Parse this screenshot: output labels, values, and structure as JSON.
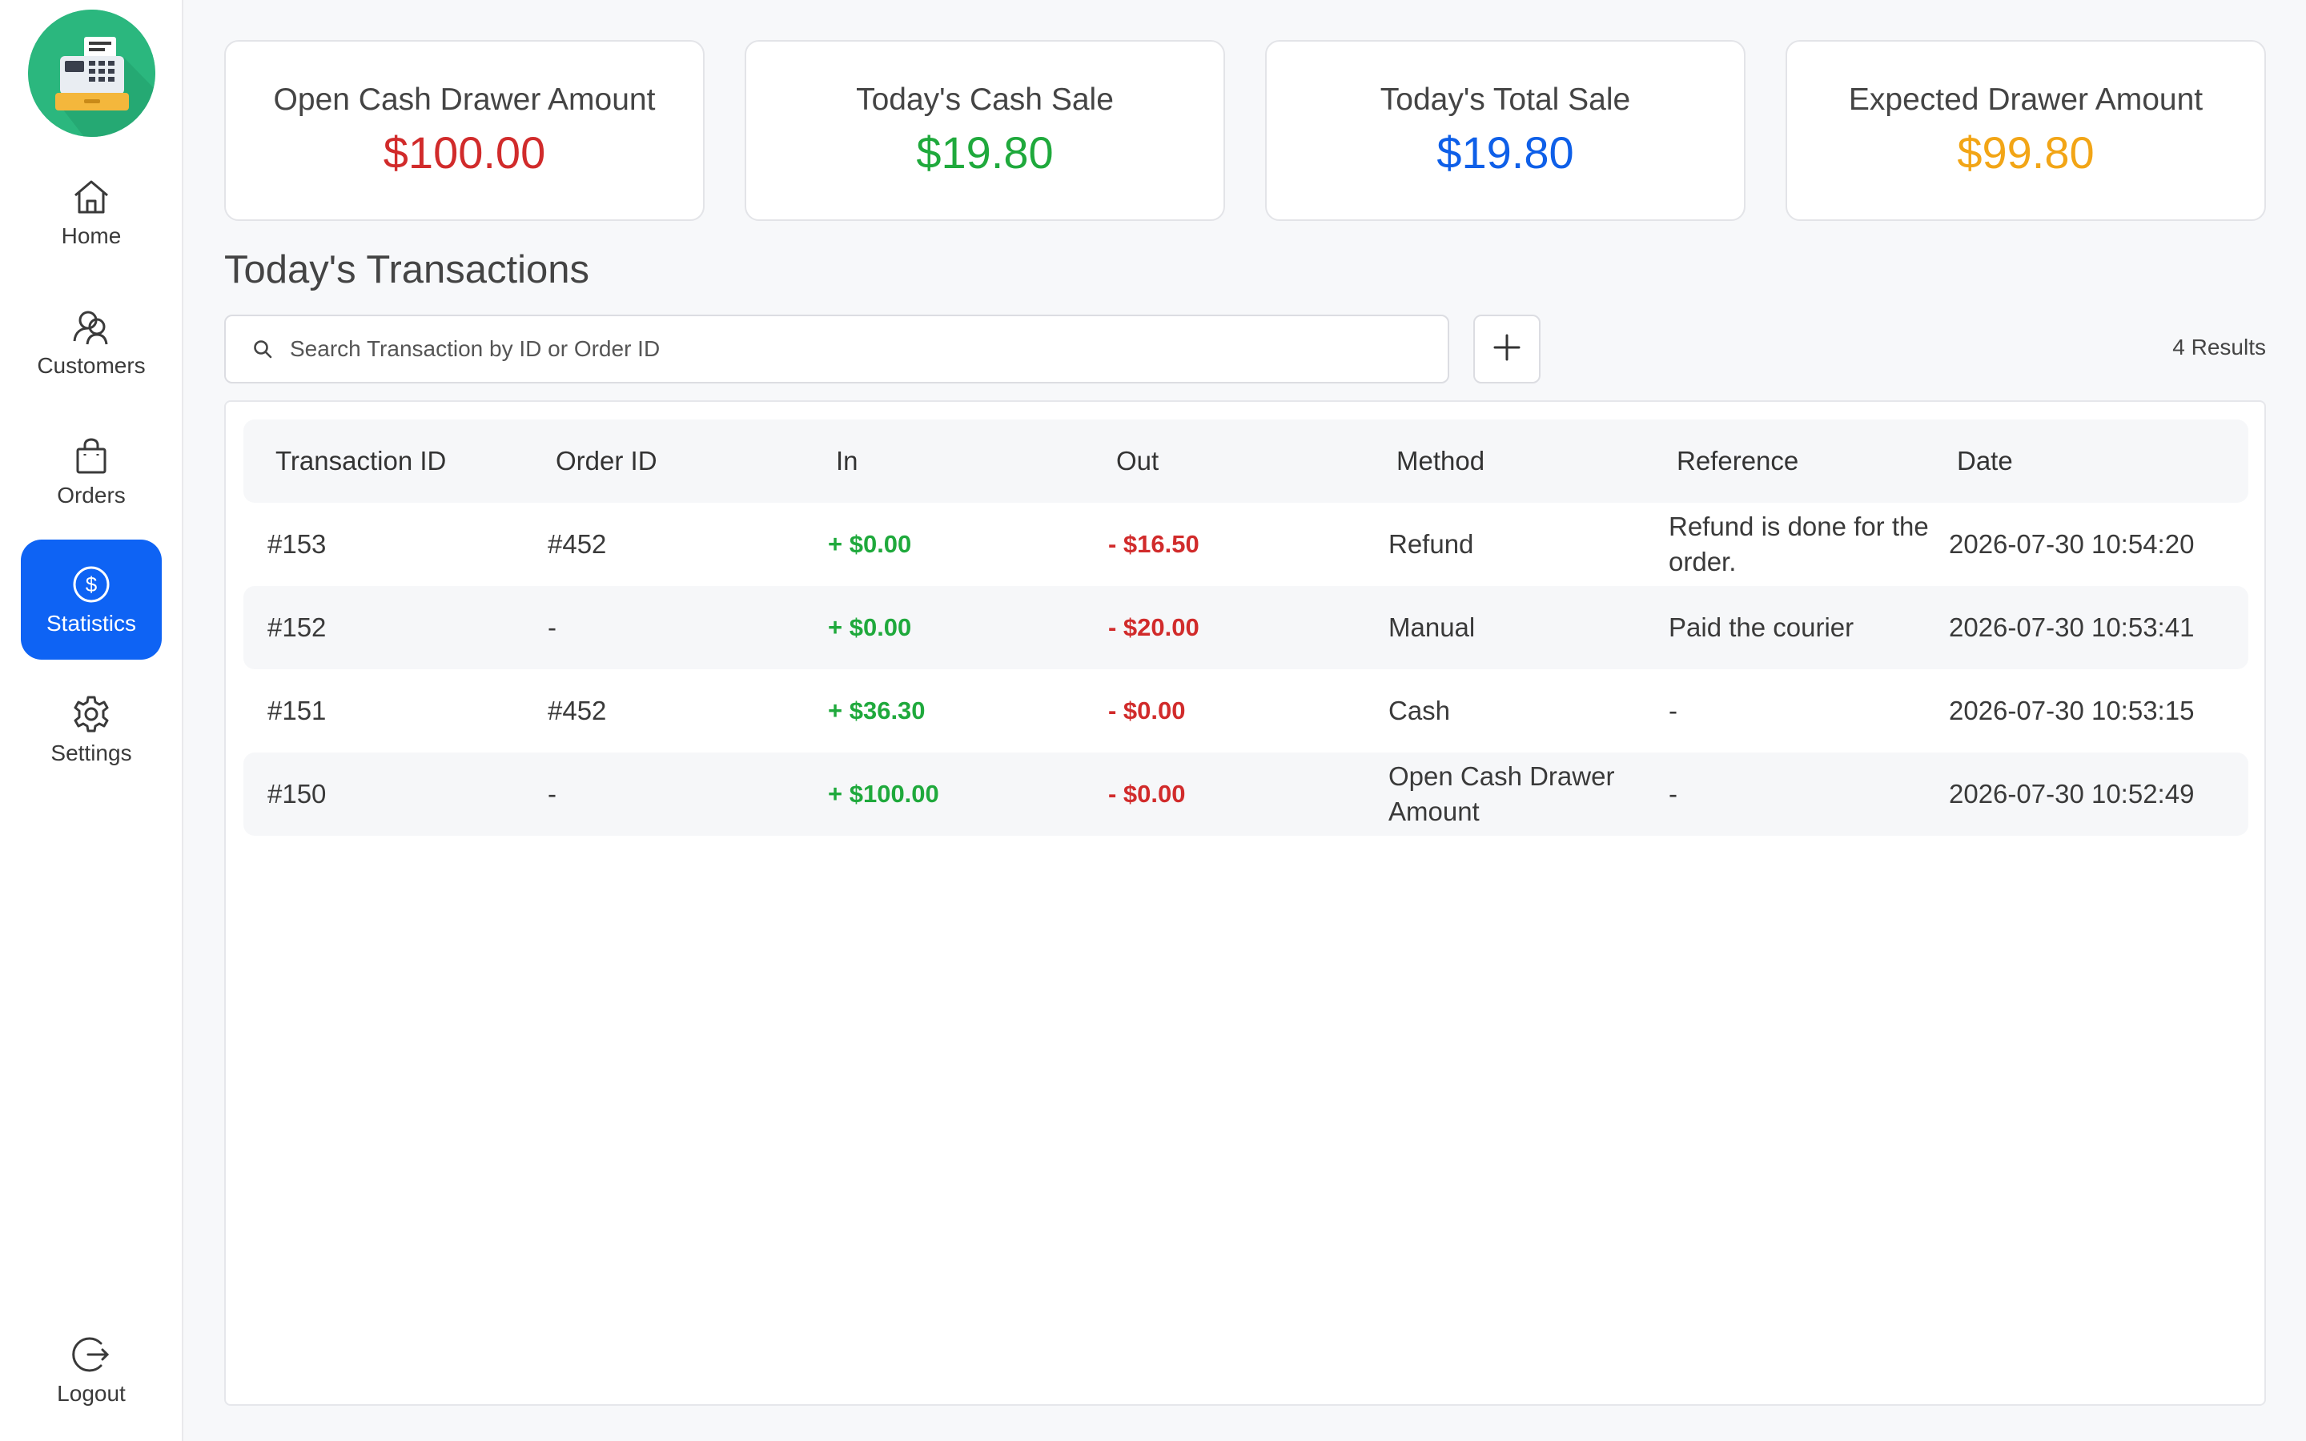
{
  "sidebar": {
    "logo_icon": "cash-register-icon",
    "items": [
      {
        "label": "Home",
        "icon": "home-icon"
      },
      {
        "label": "Customers",
        "icon": "customers-icon"
      },
      {
        "label": "Orders",
        "icon": "shopping-bag-icon"
      },
      {
        "label": "Statistics",
        "icon": "dollar-circle-icon",
        "active": true
      },
      {
        "label": "Settings",
        "icon": "gear-icon"
      }
    ],
    "logout": {
      "label": "Logout",
      "icon": "logout-icon"
    }
  },
  "summary": [
    {
      "title": "Open Cash Drawer Amount",
      "value": "$100.00",
      "color": "#d12b2b"
    },
    {
      "title": "Today's Cash Sale",
      "value": "$19.80",
      "color": "#1fa93c"
    },
    {
      "title": "Today's Total Sale",
      "value": "$19.80",
      "color": "#0e5fe8"
    },
    {
      "title": "Expected Drawer Amount",
      "value": "$99.80",
      "color": "#f2a516"
    }
  ],
  "transactions": {
    "title": "Today's Transactions",
    "search_placeholder": "Search Transaction by ID or Order ID",
    "search_value": "",
    "results": "4 Results",
    "columns": [
      "Transaction ID",
      "Order ID",
      "In",
      "Out",
      "Method",
      "Reference",
      "Date"
    ],
    "rows": [
      {
        "id": "#153",
        "order": "#452",
        "in": "+ $0.00",
        "out": "- $16.50",
        "method": "Refund",
        "reference": "Refund is done for the order.",
        "date": "2026-07-30 10:54:20"
      },
      {
        "id": "#152",
        "order": "-",
        "in": "+ $0.00",
        "out": "- $20.00",
        "method": "Manual",
        "reference": "Paid the courier",
        "date": "2026-07-30 10:53:41"
      },
      {
        "id": "#151",
        "order": "#452",
        "in": "+ $36.30",
        "out": "- $0.00",
        "method": "Cash",
        "reference": "-",
        "date": "2026-07-30 10:53:15"
      },
      {
        "id": "#150",
        "order": "-",
        "in": "+ $100.00",
        "out": "- $0.00",
        "method": "Open Cash Drawer Amount",
        "reference": "-",
        "date": "2026-07-30 10:52:49"
      }
    ]
  },
  "colors": {
    "accent": "#0e63f4",
    "in": "#1fa93c",
    "out": "#d12b2b",
    "logo_bg": "#29b67d"
  }
}
